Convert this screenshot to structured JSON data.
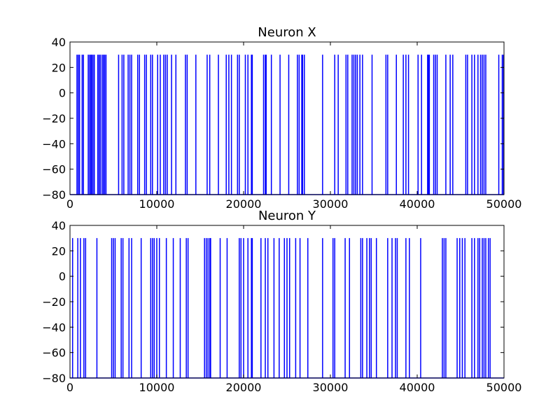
{
  "chart_data": [
    {
      "type": "line",
      "title": "Neuron X",
      "xlim": [
        0,
        50000
      ],
      "ylim": [
        -80,
        40
      ],
      "x_ticks": [
        0,
        10000,
        20000,
        30000,
        40000,
        50000
      ],
      "y_ticks": [
        -80,
        -60,
        -40,
        -20,
        0,
        20,
        40
      ],
      "x_tick_labels": [
        "0",
        "10000",
        "20000",
        "30000",
        "40000",
        "50000"
      ],
      "y_tick_labels": [
        "−80",
        "−60",
        "−40",
        "−20",
        "0",
        "20",
        "40"
      ],
      "grid": false,
      "baseline": -80,
      "spike_peak": 30,
      "series": [
        {
          "color": "#0000ff",
          "spike_times": [
            800,
            950,
            1100,
            1400,
            1550,
            2100,
            2250,
            2400,
            2500,
            2650,
            2800,
            3200,
            3350,
            3500,
            3700,
            3850,
            4000,
            4150,
            5600,
            6000,
            6200,
            6700,
            6900,
            7100,
            7800,
            8000,
            8600,
            8800,
            9300,
            9500,
            10100,
            10400,
            10800,
            11000,
            11200,
            11700,
            12200,
            13300,
            13500,
            14500,
            15800,
            16100,
            17100,
            18000,
            18300,
            18600,
            19300,
            19500,
            20200,
            20500,
            20900,
            21000,
            22300,
            22500,
            22600,
            23200,
            24200,
            25200,
            26200,
            26400,
            26700,
            26800,
            27000,
            29100,
            30500,
            30900,
            31800,
            32000,
            32500,
            32700,
            32900,
            33100,
            33400,
            33700,
            34800,
            36400,
            36600,
            37600,
            38400,
            38700,
            39000,
            40100,
            40500,
            41200,
            41300,
            41400,
            41900,
            42100,
            42300,
            43300,
            43800,
            44100,
            45600,
            45800,
            46300,
            46600,
            47000,
            47300,
            47500,
            47700,
            47900,
            49400,
            49800,
            50000
          ]
        }
      ]
    },
    {
      "type": "line",
      "title": "Neuron Y",
      "xlim": [
        0,
        50000
      ],
      "ylim": [
        -80,
        40
      ],
      "x_ticks": [
        0,
        10000,
        20000,
        30000,
        40000,
        50000
      ],
      "y_ticks": [
        -80,
        -60,
        -40,
        -20,
        0,
        20,
        40
      ],
      "x_tick_labels": [
        "0",
        "10000",
        "20000",
        "30000",
        "40000",
        "50000"
      ],
      "y_tick_labels": [
        "−80",
        "−60",
        "−40",
        "−20",
        "0",
        "20",
        "40"
      ],
      "grid": false,
      "baseline": -80,
      "spike_peak": 30,
      "series": [
        {
          "color": "#0000ff",
          "spike_times": [
            300,
            900,
            1200,
            1600,
            1800,
            3100,
            4800,
            5000,
            5200,
            5900,
            6100,
            6800,
            7100,
            8200,
            9300,
            9500,
            9700,
            10000,
            10300,
            11100,
            11900,
            12700,
            13400,
            13600,
            15500,
            15700,
            15900,
            16100,
            16200,
            17300,
            18100,
            19500,
            19700,
            20000,
            20500,
            20900,
            21000,
            22000,
            22500,
            22800,
            23500,
            24100,
            24700,
            25000,
            25300,
            26000,
            26500,
            27400,
            29100,
            30300,
            30500,
            31700,
            32200,
            33500,
            33700,
            34200,
            34500,
            34700,
            35300,
            36600,
            37100,
            37500,
            37700,
            38700,
            39100,
            40400,
            42900,
            43100,
            43300,
            44600,
            44900,
            45200,
            45500,
            46300,
            46600,
            47000,
            47200,
            47500,
            47700,
            47900,
            48200,
            48400
          ]
        }
      ]
    }
  ]
}
